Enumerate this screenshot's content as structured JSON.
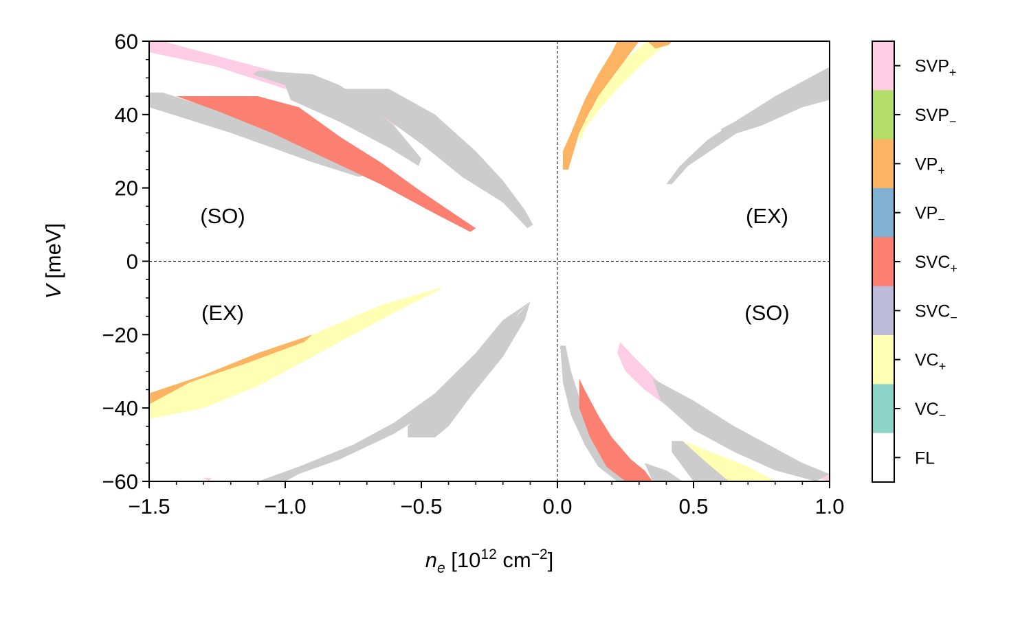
{
  "chart_data": {
    "type": "heatmap",
    "xlabel": {
      "main": "n",
      "sub": "e",
      "rest": " [10",
      "sup": "12",
      "rest2": " cm",
      "sup2": "−2",
      "rest3": "]"
    },
    "ylabel": {
      "main": "V",
      "rest": " [meV]"
    },
    "xlim": [
      -1.5,
      1.0
    ],
    "ylim": [
      -60,
      60
    ],
    "xticks": [
      "−1.5",
      "−1.0",
      "−0.5",
      "0.0",
      "0.5",
      "1.0"
    ],
    "xtick_values": [
      -1.5,
      -1.0,
      -0.5,
      0.0,
      0.5,
      1.0
    ],
    "yticks": [
      "60",
      "40",
      "20",
      "0",
      "−20",
      "−40",
      "−60"
    ],
    "ytick_values": [
      60,
      40,
      20,
      0,
      -20,
      -40,
      -60
    ],
    "reference_lines": {
      "x": 0.0,
      "y": 0.0,
      "style": "dashed"
    },
    "quadrant_labels": [
      {
        "text": "(SO)",
        "x": -1.25,
        "y": 10
      },
      {
        "text": "(EX)",
        "x": 0.75,
        "y": 10
      },
      {
        "text": "(EX)",
        "x": -1.25,
        "y": -10
      },
      {
        "text": "(SO)",
        "x": 0.75,
        "y": -10
      }
    ],
    "phases": [
      {
        "base": "SVP",
        "sub": "+",
        "color": "#fccde5"
      },
      {
        "base": "SVP",
        "sub": "−",
        "color": "#b3de69"
      },
      {
        "base": "VP",
        "sub": "+",
        "color": "#fdb462"
      },
      {
        "base": "VP",
        "sub": "−",
        "color": "#80b1d3"
      },
      {
        "base": "SVC",
        "sub": "+",
        "color": "#fb8072"
      },
      {
        "base": "SVC",
        "sub": "−",
        "color": "#bebada"
      },
      {
        "base": "VC",
        "sub": "+",
        "color": "#ffffb3"
      },
      {
        "base": "VC",
        "sub": "−",
        "color": "#8dd3c7"
      },
      {
        "base": "FL",
        "sub": "",
        "color": "#ffffff"
      }
    ],
    "regions": [
      {
        "phase": "SVP+",
        "points": [
          [
            -1.5,
            60
          ],
          [
            -1.45,
            60
          ],
          [
            -1.2,
            55
          ],
          [
            -0.8,
            47
          ],
          [
            -0.6,
            41
          ],
          [
            -0.5,
            37
          ],
          [
            -0.52,
            35
          ],
          [
            -0.75,
            41
          ],
          [
            -1.0,
            47
          ],
          [
            -1.25,
            53
          ],
          [
            -1.5,
            57
          ]
        ]
      },
      {
        "phase": "VC-",
        "points": [
          [
            -1.1,
            52
          ],
          [
            -0.9,
            51
          ],
          [
            -0.8,
            48
          ],
          [
            -0.7,
            43
          ],
          [
            -0.6,
            37
          ],
          [
            -0.5,
            28
          ],
          [
            -0.51,
            26
          ],
          [
            -0.62,
            31
          ],
          [
            -0.8,
            38
          ],
          [
            -0.98,
            44
          ],
          [
            -1.0,
            48
          ],
          [
            -1.12,
            51
          ]
        ]
      },
      {
        "phase": "SVC-",
        "points": [
          [
            -0.88,
            47
          ],
          [
            -0.62,
            47
          ],
          [
            -0.45,
            40
          ],
          [
            -0.3,
            30
          ],
          [
            -0.2,
            22
          ],
          [
            -0.12,
            14
          ],
          [
            -0.09,
            10
          ],
          [
            -0.11,
            9
          ],
          [
            -0.2,
            16
          ],
          [
            -0.35,
            23
          ],
          [
            -0.5,
            32
          ],
          [
            -0.65,
            40
          ],
          [
            -0.8,
            45
          ]
        ]
      },
      {
        "phase": "SVP-",
        "points": [
          [
            -1.5,
            46
          ],
          [
            -1.45,
            46
          ],
          [
            -1.2,
            40
          ],
          [
            -0.9,
            33
          ],
          [
            -0.75,
            28
          ],
          [
            -0.68,
            24
          ],
          [
            -0.73,
            23
          ],
          [
            -0.9,
            27
          ],
          [
            -1.2,
            35
          ],
          [
            -1.5,
            42
          ]
        ]
      },
      {
        "phase": "SVC+",
        "points": [
          [
            -1.4,
            45
          ],
          [
            -1.1,
            45
          ],
          [
            -0.95,
            42
          ],
          [
            -0.8,
            34
          ],
          [
            -0.65,
            27
          ],
          [
            -0.5,
            19
          ],
          [
            -0.38,
            13
          ],
          [
            -0.3,
            9
          ],
          [
            -0.32,
            8
          ],
          [
            -0.45,
            13
          ],
          [
            -0.65,
            21
          ],
          [
            -0.85,
            28
          ],
          [
            -1.05,
            35
          ],
          [
            -1.25,
            41
          ]
        ]
      },
      {
        "phase": "VP+",
        "points": [
          [
            0.02,
            30
          ],
          [
            0.05,
            35
          ],
          [
            0.1,
            44
          ],
          [
            0.15,
            51
          ],
          [
            0.2,
            57
          ],
          [
            0.22,
            60
          ],
          [
            0.3,
            60
          ],
          [
            0.25,
            55
          ],
          [
            0.18,
            47
          ],
          [
            0.12,
            41
          ],
          [
            0.08,
            35
          ],
          [
            0.06,
            30
          ],
          [
            0.04,
            25
          ],
          [
            0.02,
            25
          ]
        ]
      },
      {
        "phase": "VC+",
        "points": [
          [
            0.08,
            35
          ],
          [
            0.15,
            45
          ],
          [
            0.25,
            55
          ],
          [
            0.33,
            60
          ],
          [
            0.4,
            60
          ],
          [
            0.38,
            58
          ],
          [
            0.3,
            53
          ],
          [
            0.22,
            47
          ],
          [
            0.15,
            41
          ],
          [
            0.1,
            36
          ],
          [
            0.08,
            32
          ]
        ]
      },
      {
        "phase": "VP+",
        "points": [
          [
            0.33,
            60
          ],
          [
            0.42,
            60
          ],
          [
            0.41,
            59
          ],
          [
            0.36,
            58
          ]
        ]
      },
      {
        "phase": "VP-",
        "points": [
          [
            0.4,
            21
          ],
          [
            0.45,
            26
          ],
          [
            0.55,
            33
          ],
          [
            0.65,
            38
          ],
          [
            0.8,
            45
          ],
          [
            1.0,
            53
          ],
          [
            1.0,
            50
          ],
          [
            0.85,
            43
          ],
          [
            0.7,
            37
          ],
          [
            0.6,
            32
          ],
          [
            0.48,
            26
          ],
          [
            0.42,
            21
          ]
        ]
      },
      {
        "phase": "VC-",
        "points": [
          [
            0.6,
            36
          ],
          [
            0.75,
            42
          ],
          [
            0.9,
            47
          ],
          [
            1.0,
            51
          ],
          [
            1.0,
            44
          ],
          [
            0.9,
            42
          ],
          [
            0.75,
            37
          ],
          [
            0.62,
            34
          ]
        ]
      },
      {
        "phase": "VC+",
        "points": [
          [
            -1.5,
            -37
          ],
          [
            -1.2,
            -28
          ],
          [
            -0.9,
            -20
          ],
          [
            -0.65,
            -12
          ],
          [
            -0.42,
            -7
          ],
          [
            -0.44,
            -8
          ],
          [
            -0.6,
            -14
          ],
          [
            -0.85,
            -24
          ],
          [
            -1.1,
            -34
          ],
          [
            -1.3,
            -40
          ],
          [
            -1.5,
            -43
          ]
        ]
      },
      {
        "phase": "VP+",
        "points": [
          [
            -1.5,
            -36
          ],
          [
            -1.3,
            -31
          ],
          [
            -1.1,
            -25
          ],
          [
            -0.9,
            -20
          ],
          [
            -0.93,
            -22
          ],
          [
            -1.15,
            -28
          ],
          [
            -1.35,
            -33
          ],
          [
            -1.5,
            -39
          ]
        ]
      },
      {
        "phase": "VP-",
        "points": [
          [
            -1.1,
            -60
          ],
          [
            -0.95,
            -56
          ],
          [
            -0.75,
            -50
          ],
          [
            -0.6,
            -44
          ],
          [
            -0.45,
            -36
          ],
          [
            -0.3,
            -25
          ],
          [
            -0.2,
            -16
          ],
          [
            -0.1,
            -11
          ],
          [
            -0.14,
            -14
          ],
          [
            -0.3,
            -29
          ],
          [
            -0.45,
            -40
          ],
          [
            -0.6,
            -47
          ],
          [
            -0.8,
            -54
          ],
          [
            -0.95,
            -58
          ],
          [
            -1.0,
            -60
          ]
        ]
      },
      {
        "phase": "VC-",
        "points": [
          [
            -0.55,
            -48
          ],
          [
            -0.55,
            -45
          ],
          [
            -0.4,
            -34
          ],
          [
            -0.25,
            -22
          ],
          [
            -0.15,
            -15
          ],
          [
            -0.1,
            -11
          ],
          [
            -0.12,
            -16
          ],
          [
            -0.2,
            -26
          ],
          [
            -0.32,
            -37
          ],
          [
            -0.4,
            -45
          ],
          [
            -0.45,
            -48
          ]
        ]
      },
      {
        "phase": "SVP+",
        "points": [
          [
            -1.28,
            -60
          ],
          [
            -1.3,
            -59
          ],
          [
            -1.27,
            -59
          ]
        ]
      },
      {
        "phase": "SVP-",
        "points": [
          [
            0.01,
            -23
          ],
          [
            0.03,
            -23
          ],
          [
            0.05,
            -30
          ],
          [
            0.08,
            -37
          ],
          [
            0.12,
            -45
          ],
          [
            0.17,
            -52
          ],
          [
            0.22,
            -57
          ],
          [
            0.32,
            -60
          ],
          [
            0.22,
            -60
          ],
          [
            0.15,
            -56
          ],
          [
            0.1,
            -50
          ],
          [
            0.05,
            -42
          ],
          [
            0.02,
            -33
          ]
        ]
      },
      {
        "phase": "SVC+",
        "points": [
          [
            0.08,
            -32
          ],
          [
            0.1,
            -35
          ],
          [
            0.15,
            -42
          ],
          [
            0.2,
            -48
          ],
          [
            0.27,
            -54
          ],
          [
            0.32,
            -57
          ],
          [
            0.35,
            -60
          ],
          [
            0.25,
            -60
          ],
          [
            0.18,
            -56
          ],
          [
            0.12,
            -48
          ],
          [
            0.08,
            -40
          ]
        ]
      },
      {
        "phase": "SVP-",
        "points": [
          [
            0.32,
            -55
          ],
          [
            0.4,
            -57
          ],
          [
            0.46,
            -60
          ],
          [
            0.35,
            -60
          ]
        ]
      },
      {
        "phase": "SVP+",
        "points": [
          [
            0.23,
            -22
          ],
          [
            0.28,
            -26
          ],
          [
            0.4,
            -35
          ],
          [
            0.55,
            -42
          ],
          [
            0.7,
            -49
          ],
          [
            0.85,
            -55
          ],
          [
            1.0,
            -58
          ],
          [
            1.0,
            -61
          ],
          [
            0.9,
            -58
          ],
          [
            0.75,
            -54
          ],
          [
            0.6,
            -48
          ],
          [
            0.45,
            -42
          ],
          [
            0.32,
            -35
          ],
          [
            0.25,
            -30
          ],
          [
            0.22,
            -25
          ]
        ]
      },
      {
        "phase": "SVC-",
        "points": [
          [
            0.35,
            -32
          ],
          [
            0.5,
            -38
          ],
          [
            0.65,
            -45
          ],
          [
            0.8,
            -51
          ],
          [
            0.9,
            -55
          ],
          [
            1.0,
            -58
          ],
          [
            0.95,
            -61
          ],
          [
            0.8,
            -57
          ],
          [
            0.65,
            -52
          ],
          [
            0.5,
            -46
          ],
          [
            0.38,
            -38
          ]
        ]
      },
      {
        "phase": "VC-",
        "points": [
          [
            0.42,
            -49
          ],
          [
            0.46,
            -49
          ],
          [
            0.55,
            -55
          ],
          [
            0.6,
            -58
          ],
          [
            0.63,
            -60
          ],
          [
            0.5,
            -60
          ],
          [
            0.45,
            -55
          ],
          [
            0.42,
            -52
          ]
        ]
      },
      {
        "phase": "VC+",
        "points": [
          [
            0.46,
            -49
          ],
          [
            0.6,
            -53
          ],
          [
            0.7,
            -56
          ],
          [
            0.8,
            -60
          ],
          [
            0.63,
            -60
          ],
          [
            0.55,
            -55
          ]
        ]
      }
    ]
  }
}
